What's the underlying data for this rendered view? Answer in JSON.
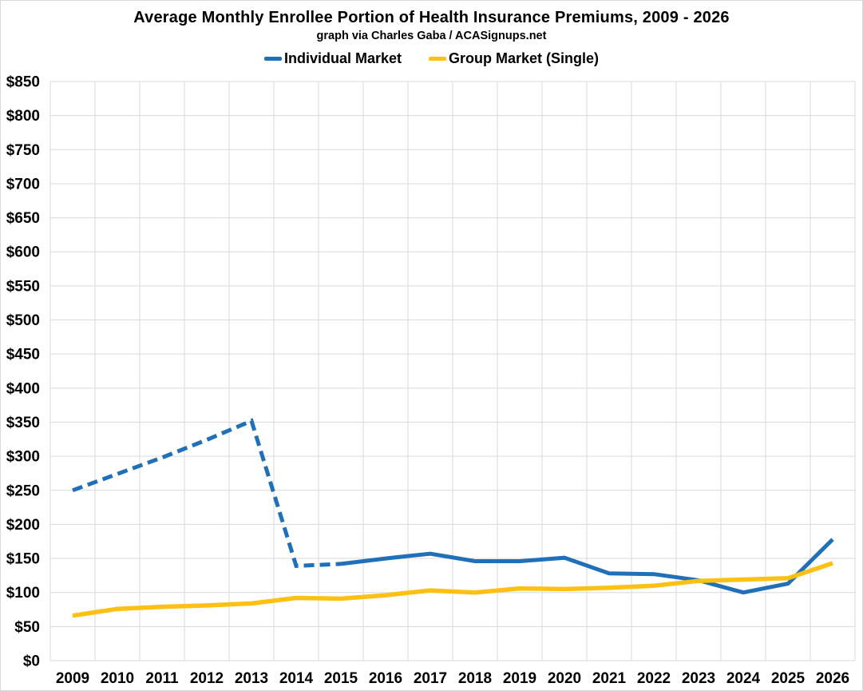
{
  "title": "Average Monthly Enrollee Portion of Health Insurance Premiums, 2009 - 2026",
  "subtitle": "graph via Charles Gaba / ACASignups.net",
  "legend": [
    {
      "label": "Individual Market",
      "color": "#1f70b8"
    },
    {
      "label": "Group Market (Single)",
      "color": "#fdc013"
    }
  ],
  "chart_data": {
    "type": "line",
    "title": "Average Monthly Enrollee Portion of Health Insurance Premiums, 2009 - 2026",
    "subtitle": "graph via Charles Gaba / ACASignups.net",
    "x": [
      "2009",
      "2010",
      "2011",
      "2012",
      "2013",
      "2014",
      "2015",
      "2016",
      "2017",
      "2018",
      "2019",
      "2020",
      "2021",
      "2022",
      "2023",
      "2024",
      "2025",
      "2026"
    ],
    "series": [
      {
        "id": "individual-market",
        "name": "Individual Market",
        "color": "#1f70b8",
        "line_width": 5,
        "dashed_until_year": "2015",
        "values": [
          250,
          274,
          298,
          324,
          352,
          139,
          142,
          150,
          157,
          146,
          146,
          151,
          128,
          127,
          118,
          100,
          113,
          178
        ]
      },
      {
        "id": "group-market-single",
        "name": "Group Market (Single)",
        "color": "#fdc013",
        "line_width": 5.5,
        "dashed_until_year": null,
        "values": [
          66,
          76,
          79,
          81,
          84,
          92,
          91,
          96,
          103,
          100,
          106,
          105,
          107,
          110,
          117,
          119,
          121,
          143
        ]
      }
    ],
    "xlabel": "",
    "ylabel": "",
    "ylim": [
      0,
      850
    ],
    "y_tick_step": 50,
    "y_tick_labels": [
      "$0",
      "$50",
      "$100",
      "$150",
      "$200",
      "$250",
      "$300",
      "$350",
      "$400",
      "$450",
      "$500",
      "$550",
      "$600",
      "$650",
      "$700",
      "$750",
      "$800",
      "$850"
    ],
    "grid": true,
    "grid_color": "#d9d9d9",
    "text_color": "#000000",
    "legend_position": "top",
    "dash_pattern": "13 7"
  }
}
